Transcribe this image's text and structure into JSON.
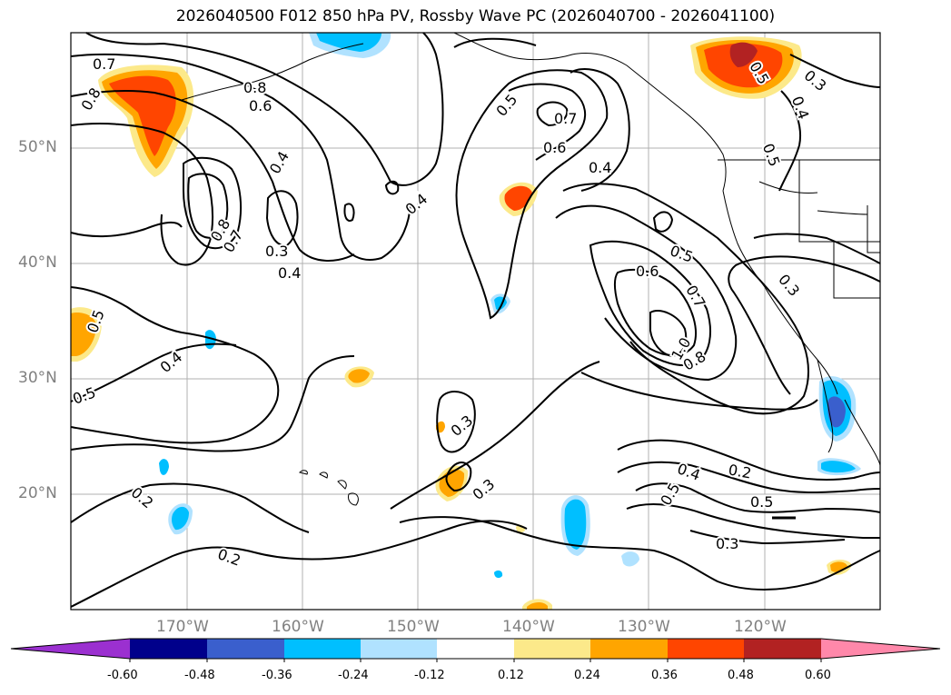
{
  "title": "2026040500 F012 850 hPa PV, Rossby Wave PC (2026040700 - 2026041100)",
  "lat_labels": [
    "50°N",
    "40°N",
    "30°N",
    "20°N"
  ],
  "lon_labels": [
    "170°W",
    "160°W",
    "150°W",
    "140°W",
    "130°W",
    "120°W"
  ],
  "contour_labels": [
    "0.7",
    "0.8",
    "0.8",
    "0.6",
    "0.4",
    "0.8",
    "0.7",
    "0.3",
    "0.4",
    "0.4",
    "0.5",
    "0.7",
    "0.6",
    "0.4",
    "0.5",
    "0.3",
    "0.4",
    "0.5",
    "0.6",
    "0.5",
    "0.7",
    "1.0",
    "0.8",
    "0.3",
    "0.5",
    "0.4",
    "0.5",
    "0.3",
    "0.3",
    "0.2",
    "0.2",
    "0.4",
    "0.2",
    "0.5",
    "0.5",
    "0.3"
  ],
  "colorbar": {
    "ticks": [
      "-0.60",
      "-0.48",
      "-0.36",
      "-0.24",
      "-0.12",
      "0.12",
      "0.24",
      "0.36",
      "0.48",
      "0.60"
    ],
    "colors": [
      "#9b30d0",
      "#00008b",
      "#3a5fcd",
      "#00bfff",
      "#b0e2ff",
      "#ffffff",
      "#fce98a",
      "#ffa500",
      "#ff4500",
      "#b22222",
      "#ff88aa"
    ]
  }
}
